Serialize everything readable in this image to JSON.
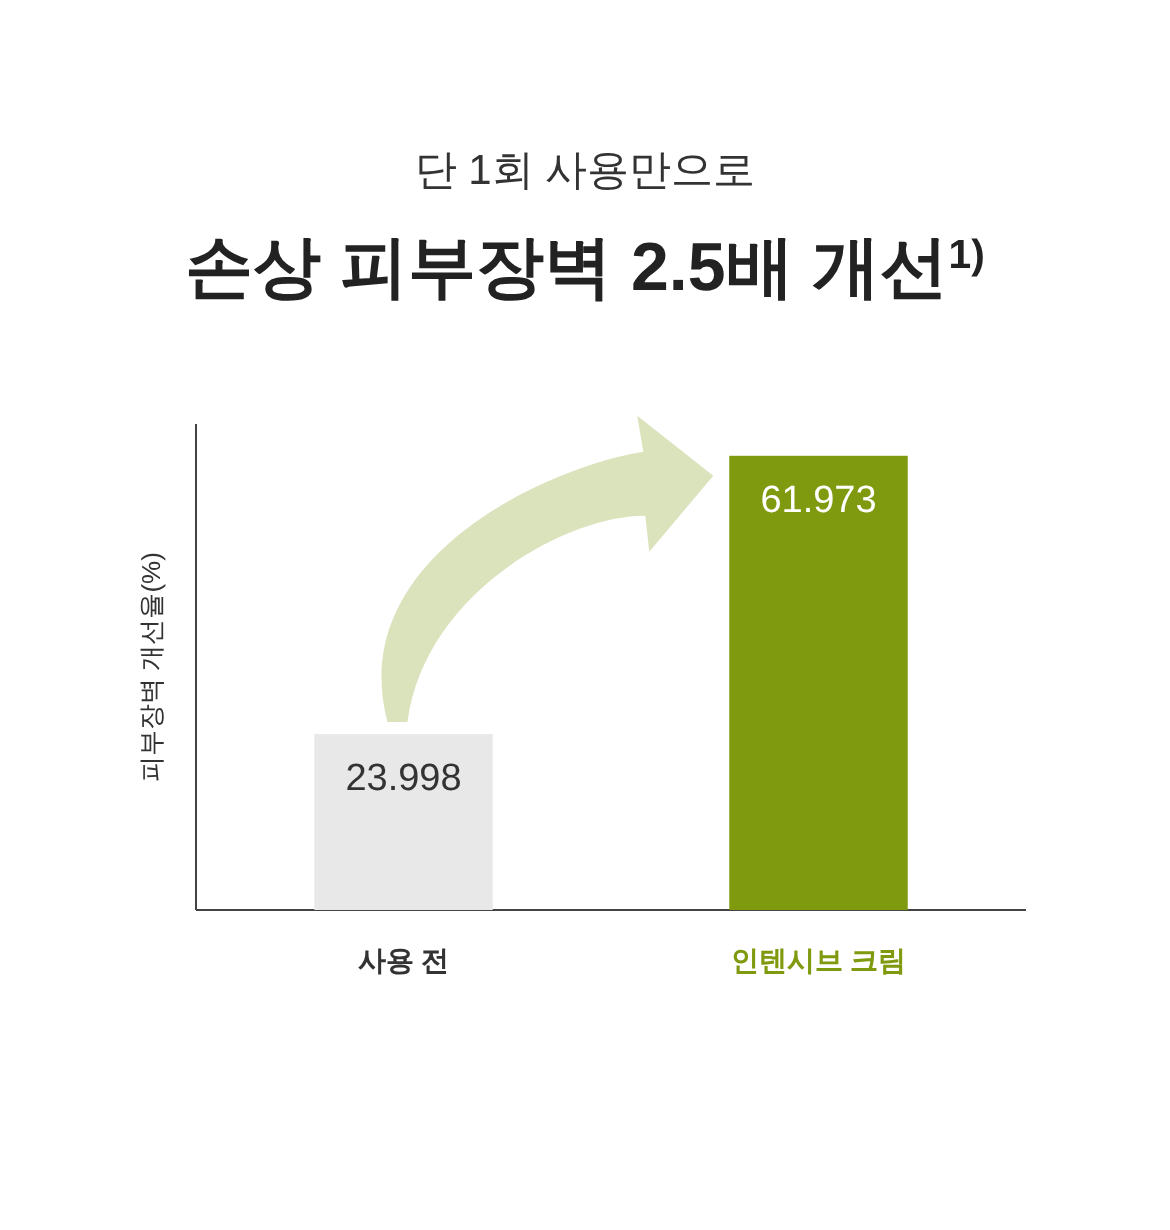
{
  "chart_data": {
    "type": "bar",
    "subtitle": "단 1회 사용만으로",
    "title": "손상 피부장벽 2.5배 개선$^{1)}$",
    "ylabel": "피부장벽 개선율(%)",
    "categories": [
      "사용 전",
      "인텐시브 크림"
    ],
    "values": [
      23.998,
      61.973
    ],
    "colors": [
      "#e8e8e8",
      "#7f9a0e"
    ],
    "data_labels": true
  }
}
